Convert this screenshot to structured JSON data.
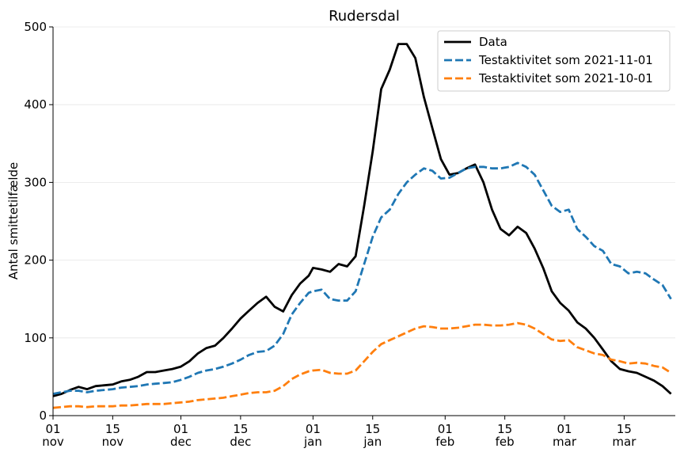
{
  "chart_data": {
    "type": "line",
    "title": "Rudersdal",
    "ylabel": "Antal smittetilfælde",
    "xlabel": "",
    "ylim": [
      0,
      500
    ],
    "yticks": [
      0,
      100,
      200,
      300,
      400,
      500
    ],
    "x_range": [
      "2021-11-01",
      "2022-03-27"
    ],
    "xticks": [
      {
        "date": "2021-11-01",
        "day": "01",
        "month": "nov"
      },
      {
        "date": "2021-11-15",
        "day": "15",
        "month": "nov"
      },
      {
        "date": "2021-12-01",
        "day": "01",
        "month": "dec"
      },
      {
        "date": "2021-12-15",
        "day": "15",
        "month": "dec"
      },
      {
        "date": "2022-01-01",
        "day": "01",
        "month": "jan"
      },
      {
        "date": "2022-01-15",
        "day": "15",
        "month": "jan"
      },
      {
        "date": "2022-02-01",
        "day": "01",
        "month": "feb"
      },
      {
        "date": "2022-02-15",
        "day": "15",
        "month": "feb"
      },
      {
        "date": "2022-03-01",
        "day": "01",
        "month": "mar"
      },
      {
        "date": "2022-03-15",
        "day": "15",
        "month": "mar"
      }
    ],
    "grid": "horizontal",
    "legend": "top-right",
    "series": [
      {
        "name": "Data",
        "color": "#000000",
        "style": "solid",
        "points": [
          [
            "2021-11-01",
            25
          ],
          [
            "2021-11-03",
            28
          ],
          [
            "2021-11-05",
            33
          ],
          [
            "2021-11-07",
            37
          ],
          [
            "2021-11-09",
            34
          ],
          [
            "2021-11-11",
            38
          ],
          [
            "2021-11-13",
            39
          ],
          [
            "2021-11-15",
            40
          ],
          [
            "2021-11-17",
            44
          ],
          [
            "2021-11-19",
            46
          ],
          [
            "2021-11-21",
            50
          ],
          [
            "2021-11-23",
            56
          ],
          [
            "2021-11-25",
            56
          ],
          [
            "2021-11-27",
            58
          ],
          [
            "2021-11-29",
            60
          ],
          [
            "2021-12-01",
            63
          ],
          [
            "2021-12-03",
            70
          ],
          [
            "2021-12-05",
            80
          ],
          [
            "2021-12-07",
            87
          ],
          [
            "2021-12-09",
            90
          ],
          [
            "2021-12-11",
            100
          ],
          [
            "2021-12-13",
            112
          ],
          [
            "2021-12-15",
            125
          ],
          [
            "2021-12-17",
            135
          ],
          [
            "2021-12-19",
            145
          ],
          [
            "2021-12-21",
            153
          ],
          [
            "2021-12-23",
            140
          ],
          [
            "2021-12-25",
            134
          ],
          [
            "2021-12-27",
            155
          ],
          [
            "2021-12-29",
            170
          ],
          [
            "2021-12-31",
            180
          ],
          [
            "2022-01-01",
            190
          ],
          [
            "2022-01-03",
            188
          ],
          [
            "2022-01-05",
            185
          ],
          [
            "2022-01-07",
            195
          ],
          [
            "2022-01-09",
            192
          ],
          [
            "2022-01-11",
            205
          ],
          [
            "2022-01-13",
            270
          ],
          [
            "2022-01-15",
            340
          ],
          [
            "2022-01-17",
            420
          ],
          [
            "2022-01-19",
            445
          ],
          [
            "2022-01-21",
            478
          ],
          [
            "2022-01-23",
            478
          ],
          [
            "2022-01-25",
            460
          ],
          [
            "2022-01-27",
            410
          ],
          [
            "2022-01-29",
            370
          ],
          [
            "2022-01-31",
            330
          ],
          [
            "2022-02-02",
            310
          ],
          [
            "2022-02-04",
            312
          ],
          [
            "2022-02-06",
            318
          ],
          [
            "2022-02-08",
            323
          ],
          [
            "2022-02-10",
            300
          ],
          [
            "2022-02-12",
            265
          ],
          [
            "2022-02-14",
            240
          ],
          [
            "2022-02-16",
            232
          ],
          [
            "2022-02-18",
            243
          ],
          [
            "2022-02-20",
            235
          ],
          [
            "2022-02-22",
            215
          ],
          [
            "2022-02-24",
            190
          ],
          [
            "2022-02-26",
            160
          ],
          [
            "2022-02-28",
            145
          ],
          [
            "2022-03-02",
            135
          ],
          [
            "2022-03-04",
            120
          ],
          [
            "2022-03-06",
            112
          ],
          [
            "2022-03-08",
            100
          ],
          [
            "2022-03-10",
            85
          ],
          [
            "2022-03-12",
            70
          ],
          [
            "2022-03-14",
            60
          ],
          [
            "2022-03-16",
            57
          ],
          [
            "2022-03-18",
            55
          ],
          [
            "2022-03-20",
            50
          ],
          [
            "2022-03-22",
            45
          ],
          [
            "2022-03-24",
            38
          ],
          [
            "2022-03-26",
            28
          ]
        ]
      },
      {
        "name": "Testaktivitet som 2021-11-01",
        "color": "#1f77b4",
        "style": "dashed",
        "points": [
          [
            "2021-11-01",
            28
          ],
          [
            "2021-11-03",
            30
          ],
          [
            "2021-11-05",
            32
          ],
          [
            "2021-11-07",
            32
          ],
          [
            "2021-11-09",
            30
          ],
          [
            "2021-11-11",
            32
          ],
          [
            "2021-11-13",
            33
          ],
          [
            "2021-11-15",
            34
          ],
          [
            "2021-11-17",
            36
          ],
          [
            "2021-11-19",
            37
          ],
          [
            "2021-11-21",
            38
          ],
          [
            "2021-11-23",
            40
          ],
          [
            "2021-11-25",
            41
          ],
          [
            "2021-11-27",
            42
          ],
          [
            "2021-11-29",
            43
          ],
          [
            "2021-12-01",
            46
          ],
          [
            "2021-12-03",
            50
          ],
          [
            "2021-12-05",
            55
          ],
          [
            "2021-12-07",
            58
          ],
          [
            "2021-12-09",
            60
          ],
          [
            "2021-12-11",
            63
          ],
          [
            "2021-12-13",
            67
          ],
          [
            "2021-12-15",
            72
          ],
          [
            "2021-12-17",
            78
          ],
          [
            "2021-12-19",
            82
          ],
          [
            "2021-12-21",
            83
          ],
          [
            "2021-12-23",
            90
          ],
          [
            "2021-12-25",
            105
          ],
          [
            "2021-12-27",
            130
          ],
          [
            "2021-12-29",
            145
          ],
          [
            "2021-12-31",
            158
          ],
          [
            "2022-01-01",
            160
          ],
          [
            "2022-01-03",
            162
          ],
          [
            "2022-01-05",
            150
          ],
          [
            "2022-01-07",
            148
          ],
          [
            "2022-01-09",
            148
          ],
          [
            "2022-01-11",
            160
          ],
          [
            "2022-01-13",
            195
          ],
          [
            "2022-01-15",
            230
          ],
          [
            "2022-01-17",
            255
          ],
          [
            "2022-01-19",
            265
          ],
          [
            "2022-01-21",
            285
          ],
          [
            "2022-01-23",
            300
          ],
          [
            "2022-01-25",
            310
          ],
          [
            "2022-01-27",
            318
          ],
          [
            "2022-01-29",
            315
          ],
          [
            "2022-01-31",
            305
          ],
          [
            "2022-02-02",
            306
          ],
          [
            "2022-02-04",
            312
          ],
          [
            "2022-02-06",
            318
          ],
          [
            "2022-02-08",
            320
          ],
          [
            "2022-02-10",
            320
          ],
          [
            "2022-02-12",
            318
          ],
          [
            "2022-02-14",
            318
          ],
          [
            "2022-02-16",
            320
          ],
          [
            "2022-02-18",
            325
          ],
          [
            "2022-02-20",
            320
          ],
          [
            "2022-02-22",
            310
          ],
          [
            "2022-02-24",
            290
          ],
          [
            "2022-02-26",
            270
          ],
          [
            "2022-02-28",
            262
          ],
          [
            "2022-03-02",
            265
          ],
          [
            "2022-03-04",
            240
          ],
          [
            "2022-03-06",
            230
          ],
          [
            "2022-03-08",
            218
          ],
          [
            "2022-03-10",
            212
          ],
          [
            "2022-03-12",
            195
          ],
          [
            "2022-03-14",
            192
          ],
          [
            "2022-03-16",
            183
          ],
          [
            "2022-03-18",
            185
          ],
          [
            "2022-03-20",
            183
          ],
          [
            "2022-03-22",
            175
          ],
          [
            "2022-03-24",
            168
          ],
          [
            "2022-03-26",
            150
          ]
        ]
      },
      {
        "name": "Testaktivitet som 2021-10-01",
        "color": "#ff7f0e",
        "style": "dashed",
        "points": [
          [
            "2021-11-01",
            10
          ],
          [
            "2021-11-03",
            11
          ],
          [
            "2021-11-05",
            12
          ],
          [
            "2021-11-07",
            12
          ],
          [
            "2021-11-09",
            11
          ],
          [
            "2021-11-11",
            12
          ],
          [
            "2021-11-13",
            12
          ],
          [
            "2021-11-15",
            12
          ],
          [
            "2021-11-17",
            13
          ],
          [
            "2021-11-19",
            13
          ],
          [
            "2021-11-21",
            14
          ],
          [
            "2021-11-23",
            15
          ],
          [
            "2021-11-25",
            15
          ],
          [
            "2021-11-27",
            15
          ],
          [
            "2021-11-29",
            16
          ],
          [
            "2021-12-01",
            17
          ],
          [
            "2021-12-03",
            18
          ],
          [
            "2021-12-05",
            20
          ],
          [
            "2021-12-07",
            21
          ],
          [
            "2021-12-09",
            22
          ],
          [
            "2021-12-11",
            23
          ],
          [
            "2021-12-13",
            25
          ],
          [
            "2021-12-15",
            27
          ],
          [
            "2021-12-17",
            29
          ],
          [
            "2021-12-19",
            30
          ],
          [
            "2021-12-21",
            30
          ],
          [
            "2021-12-23",
            32
          ],
          [
            "2021-12-25",
            38
          ],
          [
            "2021-12-27",
            47
          ],
          [
            "2021-12-29",
            53
          ],
          [
            "2021-12-31",
            57
          ],
          [
            "2022-01-01",
            58
          ],
          [
            "2022-01-03",
            59
          ],
          [
            "2022-01-05",
            55
          ],
          [
            "2022-01-07",
            54
          ],
          [
            "2022-01-09",
            54
          ],
          [
            "2022-01-11",
            58
          ],
          [
            "2022-01-13",
            70
          ],
          [
            "2022-01-15",
            82
          ],
          [
            "2022-01-17",
            92
          ],
          [
            "2022-01-19",
            97
          ],
          [
            "2022-01-21",
            102
          ],
          [
            "2022-01-23",
            107
          ],
          [
            "2022-01-25",
            112
          ],
          [
            "2022-01-27",
            115
          ],
          [
            "2022-01-29",
            114
          ],
          [
            "2022-01-31",
            112
          ],
          [
            "2022-02-02",
            112
          ],
          [
            "2022-02-04",
            113
          ],
          [
            "2022-02-06",
            115
          ],
          [
            "2022-02-08",
            117
          ],
          [
            "2022-02-10",
            117
          ],
          [
            "2022-02-12",
            116
          ],
          [
            "2022-02-14",
            116
          ],
          [
            "2022-02-16",
            117
          ],
          [
            "2022-02-18",
            119
          ],
          [
            "2022-02-20",
            117
          ],
          [
            "2022-02-22",
            112
          ],
          [
            "2022-02-24",
            105
          ],
          [
            "2022-02-26",
            98
          ],
          [
            "2022-02-28",
            96
          ],
          [
            "2022-03-02",
            97
          ],
          [
            "2022-03-04",
            88
          ],
          [
            "2022-03-06",
            84
          ],
          [
            "2022-03-08",
            80
          ],
          [
            "2022-03-10",
            78
          ],
          [
            "2022-03-12",
            72
          ],
          [
            "2022-03-14",
            70
          ],
          [
            "2022-03-16",
            67
          ],
          [
            "2022-03-18",
            68
          ],
          [
            "2022-03-20",
            67
          ],
          [
            "2022-03-22",
            64
          ],
          [
            "2022-03-24",
            62
          ],
          [
            "2022-03-26",
            55
          ]
        ]
      }
    ]
  }
}
